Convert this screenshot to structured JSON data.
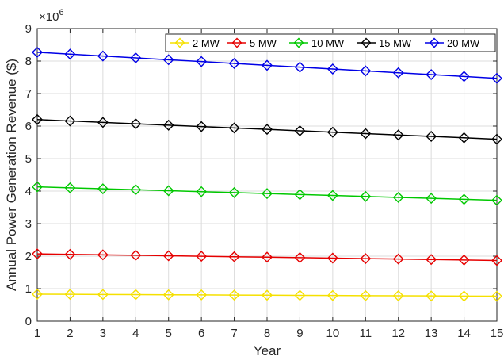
{
  "chart_data": {
    "type": "line",
    "title": "",
    "xlabel": "Year",
    "ylabel": "Annual Power Generation Revenue ($)",
    "exponent_label": "×10",
    "exponent_power": "6",
    "x": [
      1,
      2,
      3,
      4,
      5,
      6,
      7,
      8,
      9,
      10,
      11,
      12,
      13,
      14,
      15
    ],
    "xlim": [
      1,
      15
    ],
    "ylim": [
      0,
      9
    ],
    "y_ticks": [
      "0",
      "1",
      "2",
      "3",
      "4",
      "5",
      "6",
      "7",
      "8",
      "9"
    ],
    "x_ticks": [
      "1",
      "2",
      "3",
      "4",
      "5",
      "6",
      "7",
      "8",
      "9",
      "10",
      "11",
      "12",
      "13",
      "14",
      "15"
    ],
    "grid": true,
    "legend_position": "top-right",
    "series": [
      {
        "name": "2 MW",
        "color": "#f5e000",
        "values": [
          0.83,
          0.826,
          0.821,
          0.817,
          0.812,
          0.808,
          0.803,
          0.799,
          0.794,
          0.79,
          0.785,
          0.781,
          0.776,
          0.772,
          0.767
        ]
      },
      {
        "name": "5 MW",
        "color": "#e60000",
        "values": [
          2.07,
          2.056,
          2.041,
          2.027,
          2.012,
          1.998,
          1.983,
          1.969,
          1.954,
          1.94,
          1.925,
          1.911,
          1.896,
          1.882,
          1.867
        ]
      },
      {
        "name": "10 MW",
        "color": "#00c800",
        "values": [
          4.13,
          4.101,
          4.071,
          4.042,
          4.012,
          3.983,
          3.953,
          3.924,
          3.894,
          3.865,
          3.835,
          3.806,
          3.776,
          3.747,
          3.717
        ]
      },
      {
        "name": "15 MW",
        "color": "#000000",
        "values": [
          6.2,
          6.157,
          6.114,
          6.071,
          6.027,
          5.984,
          5.941,
          5.898,
          5.855,
          5.812,
          5.769,
          5.725,
          5.682,
          5.639,
          5.596
        ]
      },
      {
        "name": "20 MW",
        "color": "#0000e6",
        "values": [
          8.27,
          8.213,
          8.156,
          8.099,
          8.041,
          7.984,
          7.927,
          7.87,
          7.813,
          7.756,
          7.699,
          7.641,
          7.584,
          7.527,
          7.47
        ]
      }
    ]
  }
}
